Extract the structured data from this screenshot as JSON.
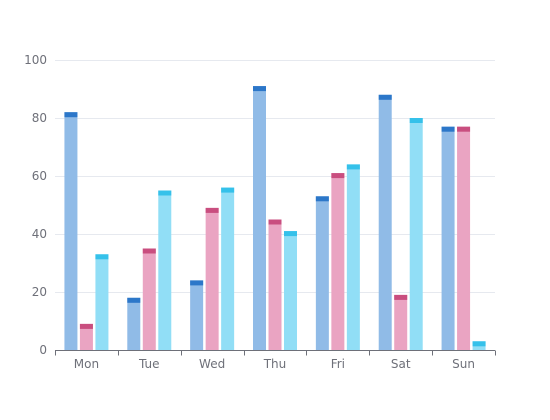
{
  "chart_data": {
    "type": "bar",
    "categories": [
      "Mon",
      "Tue",
      "Wed",
      "Thu",
      "Fri",
      "Sat",
      "Sun"
    ],
    "series": [
      {
        "values": [
          82,
          18,
          24,
          91,
          53,
          88,
          77
        ],
        "color": "#90bbe7",
        "cap_color": "#2c77c9"
      },
      {
        "values": [
          9,
          35,
          49,
          45,
          61,
          19,
          77
        ],
        "color": "#eaa4c2",
        "cap_color": "#c94e7f"
      },
      {
        "values": [
          33,
          55,
          56,
          41,
          64,
          80,
          3
        ],
        "color": "#91def6",
        "cap_color": "#35c1ea"
      }
    ],
    "y_ticks": [
      "0",
      "20",
      "40",
      "60",
      "80",
      "100"
    ],
    "ylim": [
      0,
      100
    ],
    "grid": true,
    "legend": "none",
    "title": "",
    "xlabel": "",
    "ylabel": ""
  }
}
